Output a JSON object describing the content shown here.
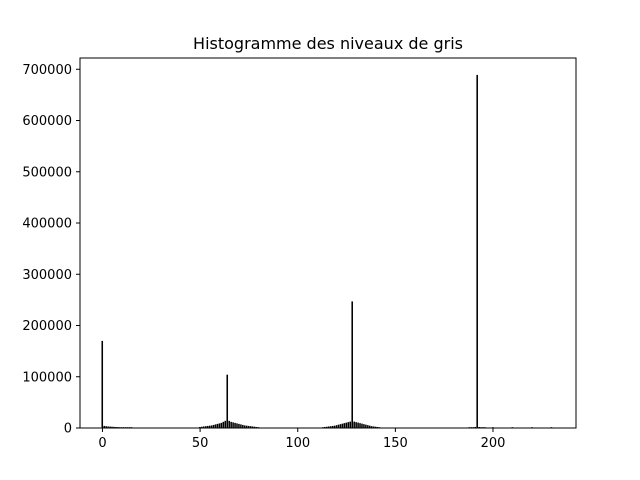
{
  "chart_data": {
    "type": "bar",
    "title": "Histogramme des niveaux de gris",
    "xlabel": "",
    "ylabel": "",
    "xlim": [
      -11.5,
      242.5
    ],
    "ylim": [
      0,
      722000
    ],
    "x_ticks": [
      0,
      50,
      100,
      150,
      200
    ],
    "y_ticks": [
      0,
      100000,
      200000,
      300000,
      400000,
      500000,
      600000,
      700000
    ],
    "grid": false,
    "bar_color": "#000000",
    "bins": [
      [
        0,
        170000
      ],
      [
        1,
        4000
      ],
      [
        2,
        3500
      ],
      [
        3,
        3000
      ],
      [
        4,
        2800
      ],
      [
        5,
        2500
      ],
      [
        6,
        2200
      ],
      [
        7,
        2000
      ],
      [
        8,
        1800
      ],
      [
        9,
        1600
      ],
      [
        10,
        1400
      ],
      [
        11,
        1200
      ],
      [
        12,
        800
      ],
      [
        13,
        500
      ],
      [
        14,
        300
      ],
      [
        15,
        200
      ],
      [
        50,
        2000
      ],
      [
        51,
        2500
      ],
      [
        52,
        3000
      ],
      [
        53,
        3500
      ],
      [
        54,
        4000
      ],
      [
        55,
        4500
      ],
      [
        56,
        5000
      ],
      [
        57,
        6000
      ],
      [
        58,
        7000
      ],
      [
        59,
        8000
      ],
      [
        60,
        9000
      ],
      [
        61,
        10000
      ],
      [
        62,
        12000
      ],
      [
        63,
        14000
      ],
      [
        64,
        104000
      ],
      [
        65,
        14000
      ],
      [
        66,
        12000
      ],
      [
        67,
        11000
      ],
      [
        68,
        10000
      ],
      [
        69,
        9000
      ],
      [
        70,
        8000
      ],
      [
        71,
        7000
      ],
      [
        72,
        6000
      ],
      [
        73,
        5000
      ],
      [
        74,
        4500
      ],
      [
        75,
        4000
      ],
      [
        76,
        3500
      ],
      [
        77,
        3000
      ],
      [
        78,
        2500
      ],
      [
        79,
        2000
      ],
      [
        80,
        1500
      ],
      [
        113,
        1500
      ],
      [
        114,
        2000
      ],
      [
        115,
        2500
      ],
      [
        116,
        3000
      ],
      [
        117,
        3500
      ],
      [
        118,
        4000
      ],
      [
        119,
        4500
      ],
      [
        120,
        5500
      ],
      [
        121,
        6500
      ],
      [
        122,
        7500
      ],
      [
        123,
        8500
      ],
      [
        124,
        9500
      ],
      [
        125,
        10500
      ],
      [
        126,
        11500
      ],
      [
        127,
        12500
      ],
      [
        128,
        247000
      ],
      [
        129,
        12500
      ],
      [
        130,
        11500
      ],
      [
        131,
        10500
      ],
      [
        132,
        9500
      ],
      [
        133,
        8500
      ],
      [
        134,
        7500
      ],
      [
        135,
        6500
      ],
      [
        136,
        5500
      ],
      [
        137,
        4500
      ],
      [
        138,
        3500
      ],
      [
        139,
        3000
      ],
      [
        140,
        2500
      ],
      [
        141,
        2000
      ],
      [
        142,
        1500
      ],
      [
        188,
        500
      ],
      [
        189,
        1000
      ],
      [
        190,
        1500
      ],
      [
        191,
        2000
      ],
      [
        192,
        689000
      ],
      [
        193,
        2000
      ],
      [
        194,
        1500
      ],
      [
        195,
        1000
      ],
      [
        196,
        500
      ],
      [
        200,
        300
      ],
      [
        210,
        200
      ],
      [
        220,
        200
      ],
      [
        230,
        200
      ]
    ]
  }
}
